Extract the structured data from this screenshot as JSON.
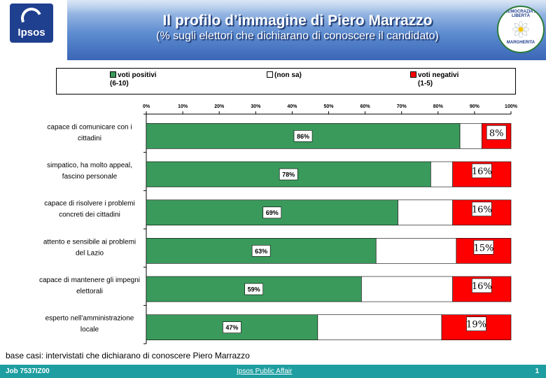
{
  "header": {
    "title": "Il profilo d’immagine di Piero Marrazzo",
    "subtitle": "(% sugli elettori che dichiarano di conoscere il candidato)",
    "ipsos_logo_text": "Ipsos",
    "ipsos_logo_icon": "ipsos-swirl-icon",
    "margherita_logo_top": "DEMOCRAZIA È LIBERTÀ",
    "margherita_logo_bottom": "MARGHERITA",
    "margherita_logo_icon": "daisy-icon"
  },
  "legend": {
    "items": [
      {
        "label": "voti positivi",
        "sublabel": "(6-10)",
        "color": "#3a9a5c"
      },
      {
        "label": "(non sa)",
        "sublabel": "",
        "color": "#ffffff"
      },
      {
        "label": "voti negativi",
        "sublabel": "(1-5)",
        "color": "#ff0000"
      }
    ]
  },
  "chart_data": {
    "type": "bar",
    "orientation": "horizontal",
    "stacked": true,
    "xlim": [
      0,
      100
    ],
    "x_ticks": [
      "0%",
      "10%",
      "20%",
      "30%",
      "40%",
      "50%",
      "60%",
      "70%",
      "80%",
      "90%",
      "100%"
    ],
    "categories": [
      [
        "capace di comunicare con i",
        "cittadini"
      ],
      [
        "simpatico, ha molto appeal,",
        "fascino personale"
      ],
      [
        "capace di risolvere i problemi",
        "concreti dei cittadini"
      ],
      [
        "attento e sensibile ai problemi",
        "del Lazio"
      ],
      [
        "capace di mantenere gli impegni",
        "elettorali"
      ],
      [
        "esperto nell’amministrazione",
        "locale"
      ]
    ],
    "series": [
      {
        "name": "voti positivi (6-10)",
        "color": "#3a9a5c",
        "values": [
          86,
          78,
          69,
          63,
          59,
          47
        ],
        "labels": [
          "86%",
          "78%",
          "69%",
          "63%",
          "59%",
          "47%"
        ]
      },
      {
        "name": "(non sa)",
        "color": "#ffffff",
        "values": [
          6,
          6,
          15,
          22,
          25,
          34
        ]
      },
      {
        "name": "voti negativi (1-5)",
        "color": "#ff0000",
        "values": [
          8,
          16,
          16,
          15,
          16,
          19
        ],
        "labels": [
          "8%",
          "16%",
          "16%",
          "15%",
          "16%",
          "19%"
        ]
      }
    ]
  },
  "footnote": "base casi: intervistati che dichiarano di conoscere Piero Marrazzo",
  "footer": {
    "job": "Job 7537IZ00",
    "center": "Ipsos Public Affair",
    "page": "1"
  }
}
